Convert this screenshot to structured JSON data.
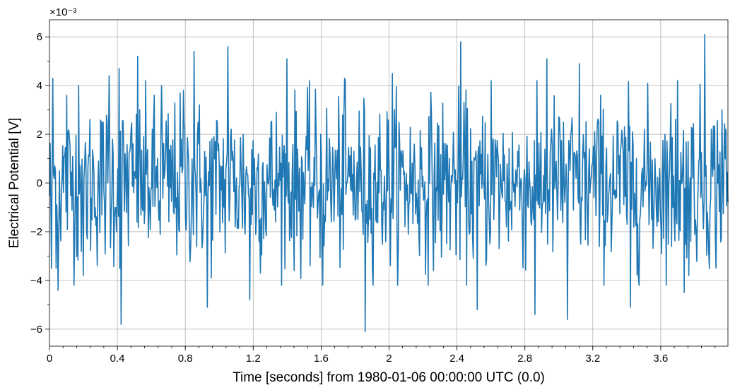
{
  "chart_data": {
    "type": "line",
    "title": "",
    "xlabel": "Time [seconds] from 1980-01-06 00:00:00 UTC (0.0)",
    "ylabel": "Electrical Potential [V]",
    "offset_text": "×10⁻³",
    "xlim": [
      0,
      3.996
    ],
    "ylim": [
      -6.7,
      6.7
    ],
    "grid": true,
    "x_ticks": [
      0,
      0.4,
      0.8,
      1.2,
      1.6,
      2.0,
      2.4,
      2.8,
      3.2,
      3.6
    ],
    "x_tick_labels": [
      "0",
      "0.4",
      "0.8",
      "1.2",
      "1.6",
      "2",
      "2.4",
      "2.8",
      "3.2",
      "3.6"
    ],
    "y_ticks": [
      -6,
      -4,
      -2,
      0,
      2,
      4,
      6
    ],
    "y_tick_labels": [
      "−6",
      "−4",
      "−2",
      "0",
      "2",
      "4",
      "6"
    ],
    "series": [
      {
        "color": "#1f77b4",
        "sample_rate_hz": 256,
        "x_start": 0,
        "amplitude_sigma": 2.0,
        "peaks": [
          {
            "x": 0.01,
            "y": -3.5
          },
          {
            "x": 0.02,
            "y": 4.3
          },
          {
            "x": 0.05,
            "y": -4.4
          },
          {
            "x": 0.1,
            "y": 3.6
          },
          {
            "x": 0.17,
            "y": 4.0
          },
          {
            "x": 0.2,
            "y": -3.8
          },
          {
            "x": 0.35,
            "y": 4.4
          },
          {
            "x": 0.41,
            "y": 4.7
          },
          {
            "x": 0.42,
            "y": -5.8
          },
          {
            "x": 0.52,
            "y": 5.2
          },
          {
            "x": 0.66,
            "y": 4.0
          },
          {
            "x": 0.79,
            "y": 3.8
          },
          {
            "x": 0.85,
            "y": 5.4
          },
          {
            "x": 0.93,
            "y": -5.1
          },
          {
            "x": 1.05,
            "y": 5.6
          },
          {
            "x": 1.18,
            "y": -4.8
          },
          {
            "x": 1.4,
            "y": 5.1
          },
          {
            "x": 1.61,
            "y": -4.2
          },
          {
            "x": 1.74,
            "y": 4.3
          },
          {
            "x": 1.86,
            "y": -6.1
          },
          {
            "x": 2.02,
            "y": 4.5
          },
          {
            "x": 2.42,
            "y": 5.8
          },
          {
            "x": 2.52,
            "y": -5.2
          },
          {
            "x": 2.6,
            "y": 4.2
          },
          {
            "x": 2.86,
            "y": -5.4
          },
          {
            "x": 2.93,
            "y": 5.1
          },
          {
            "x": 3.05,
            "y": -5.6
          },
          {
            "x": 3.12,
            "y": 4.9
          },
          {
            "x": 3.42,
            "y": -5.1
          },
          {
            "x": 3.7,
            "y": 4.2
          },
          {
            "x": 3.74,
            "y": -4.5
          },
          {
            "x": 3.86,
            "y": 6.1
          },
          {
            "x": 3.96,
            "y": 3.0
          }
        ]
      }
    ]
  }
}
